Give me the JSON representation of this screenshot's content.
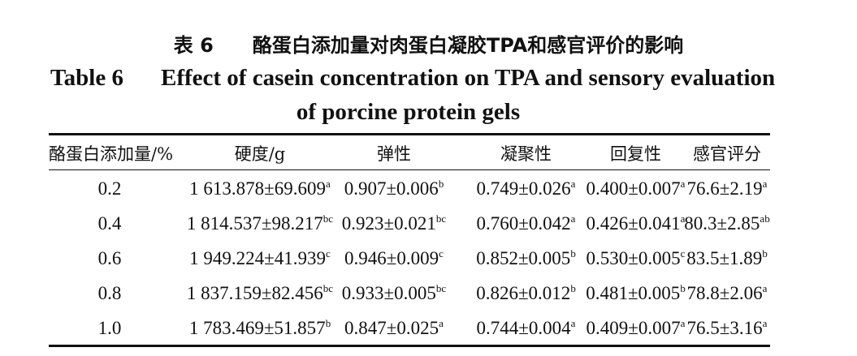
{
  "caption": {
    "cn_label": "表 6",
    "cn_title": "酪蛋白添加量对肉蛋白凝胶TPA和感官评价的影响",
    "en_label": "Table 6",
    "en_title_line1": "Effect of casein concentration on TPA and sensory evaluation",
    "en_title_line2": "of porcine protein gels"
  },
  "table": {
    "headers": [
      "酪蛋白添加量/%",
      "硬度/g",
      "弹性",
      "凝聚性",
      "回复性",
      "感官评分"
    ],
    "rows": [
      [
        {
          "v": "0.2"
        },
        {
          "v": "1 613.878±69.609",
          "s": "a"
        },
        {
          "v": "0.907±0.006",
          "s": "b"
        },
        {
          "v": "0.749±0.026",
          "s": "a"
        },
        {
          "v": "0.400±0.007",
          "s": "a"
        },
        {
          "v": "76.6±2.19",
          "s": "a"
        }
      ],
      [
        {
          "v": "0.4"
        },
        {
          "v": "1 814.537±98.217",
          "s": "bc"
        },
        {
          "v": "0.923±0.021",
          "s": "bc"
        },
        {
          "v": "0.760±0.042",
          "s": "a"
        },
        {
          "v": "0.426±0.041",
          "s": "a"
        },
        {
          "v": "80.3±2.85",
          "s": "ab"
        }
      ],
      [
        {
          "v": "0.6"
        },
        {
          "v": "1 949.224±41.939",
          "s": "c"
        },
        {
          "v": "0.946±0.009",
          "s": "c"
        },
        {
          "v": "0.852±0.005",
          "s": "b"
        },
        {
          "v": "0.530±0.005",
          "s": "c"
        },
        {
          "v": "83.5±1.89",
          "s": "b"
        }
      ],
      [
        {
          "v": "0.8"
        },
        {
          "v": "1 837.159±82.456",
          "s": "bc"
        },
        {
          "v": "0.933±0.005",
          "s": "bc"
        },
        {
          "v": "0.826±0.012",
          "s": "b"
        },
        {
          "v": "0.481±0.005",
          "s": "b"
        },
        {
          "v": "78.8±2.06",
          "s": "a"
        }
      ],
      [
        {
          "v": "1.0"
        },
        {
          "v": "1 783.469±51.857",
          "s": "b"
        },
        {
          "v": "0.847±0.025",
          "s": "a"
        },
        {
          "v": "0.744±0.004",
          "s": "a"
        },
        {
          "v": "0.409±0.007",
          "s": "a"
        },
        {
          "v": "76.5±3.16",
          "s": "a"
        }
      ]
    ]
  }
}
